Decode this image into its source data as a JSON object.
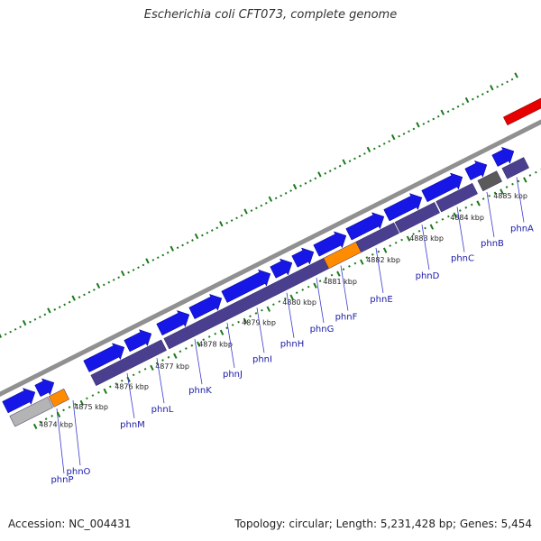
{
  "title": "Escherichia coli CFT073, complete genome",
  "footer": {
    "accession": "Accession: NC_004431",
    "summary": "Topology: circular; Length: 5,231,428 bp; Genes: 5,454"
  },
  "colors": {
    "forward_cds": "#1616e6",
    "reverse_cds": "#4a3f8e",
    "rrna": "#ff8c00",
    "other_gene": "#b4b4b4",
    "pseudo": "#5a5a5a",
    "highlight": "#e60000",
    "backbone": "#909090",
    "tick": "#1a7a1a",
    "label": "#1a1aa8"
  },
  "ticks": [
    {
      "label": "4874 kbp",
      "pos": 0.06
    },
    {
      "label": "4875 kbp",
      "pos": 0.125
    },
    {
      "label": "4876 kbp",
      "pos": 0.2
    },
    {
      "label": "4877 kbp",
      "pos": 0.275
    },
    {
      "label": "4878 kbp",
      "pos": 0.355
    },
    {
      "label": "4879 kbp",
      "pos": 0.435
    },
    {
      "label": "4880 kbp",
      "pos": 0.51
    },
    {
      "label": "4881 kbp",
      "pos": 0.585
    },
    {
      "label": "4882 kbp",
      "pos": 0.665
    },
    {
      "label": "4883 kbp",
      "pos": 0.745
    },
    {
      "label": "4884 kbp",
      "pos": 0.82
    },
    {
      "label": "4885 kbp",
      "pos": 0.9
    }
  ],
  "forward_genes": [
    {
      "from": 0.0,
      "to": 0.055,
      "color": "#1616e6"
    },
    {
      "from": 0.06,
      "to": 0.09,
      "color": "#1616e6"
    },
    {
      "from": 0.15,
      "to": 0.22,
      "color": "#1616e6"
    },
    {
      "from": 0.225,
      "to": 0.27,
      "color": "#1616e6"
    },
    {
      "from": 0.285,
      "to": 0.34,
      "color": "#1616e6"
    },
    {
      "from": 0.345,
      "to": 0.4,
      "color": "#1616e6"
    },
    {
      "from": 0.405,
      "to": 0.49,
      "color": "#1616e6"
    },
    {
      "from": 0.495,
      "to": 0.53,
      "color": "#1616e6"
    },
    {
      "from": 0.535,
      "to": 0.57,
      "color": "#1616e6"
    },
    {
      "from": 0.575,
      "to": 0.63,
      "color": "#1616e6"
    },
    {
      "from": 0.635,
      "to": 0.7,
      "color": "#1616e6"
    },
    {
      "from": 0.705,
      "to": 0.77,
      "color": "#1616e6"
    },
    {
      "from": 0.775,
      "to": 0.845,
      "color": "#1616e6"
    },
    {
      "from": 0.855,
      "to": 0.89,
      "color": "#1616e6"
    },
    {
      "from": 0.905,
      "to": 0.94,
      "color": "#1616e6"
    }
  ],
  "reverse_genes": [
    {
      "from": 0.0,
      "to": 0.07,
      "color": "#b4b4b4"
    },
    {
      "from": 0.072,
      "to": 0.1,
      "color": "#ff8c00"
    },
    {
      "from": 0.15,
      "to": 0.28,
      "color": "#4a3f8e"
    },
    {
      "from": 0.285,
      "to": 0.58,
      "color": "#4a3f8e"
    },
    {
      "from": 0.58,
      "to": 0.64,
      "color": "#ff8c00"
    },
    {
      "from": 0.64,
      "to": 0.71,
      "color": "#4a3f8e"
    },
    {
      "from": 0.712,
      "to": 0.785,
      "color": "#4a3f8e"
    },
    {
      "from": 0.788,
      "to": 0.855,
      "color": "#4a3f8e"
    },
    {
      "from": 0.865,
      "to": 0.9,
      "color": "#5a5a5a"
    },
    {
      "from": 0.91,
      "to": 0.95,
      "color": "#4a3f8e"
    }
  ],
  "gene_labels": [
    {
      "name": "phnP",
      "pos": 0.075
    },
    {
      "name": "phnO",
      "pos": 0.105
    },
    {
      "name": "phnM",
      "pos": 0.205
    },
    {
      "name": "phnL",
      "pos": 0.26
    },
    {
      "name": "phnK",
      "pos": 0.33
    },
    {
      "name": "phnJ",
      "pos": 0.39
    },
    {
      "name": "phnI",
      "pos": 0.445
    },
    {
      "name": "phnH",
      "pos": 0.5
    },
    {
      "name": "phnG",
      "pos": 0.555
    },
    {
      "name": "phnF",
      "pos": 0.6
    },
    {
      "name": "phnE",
      "pos": 0.665
    },
    {
      "name": "phnD",
      "pos": 0.75
    },
    {
      "name": "phnC",
      "pos": 0.815
    },
    {
      "name": "phnB",
      "pos": 0.87
    },
    {
      "name": "phnA",
      "pos": 0.925
    }
  ]
}
